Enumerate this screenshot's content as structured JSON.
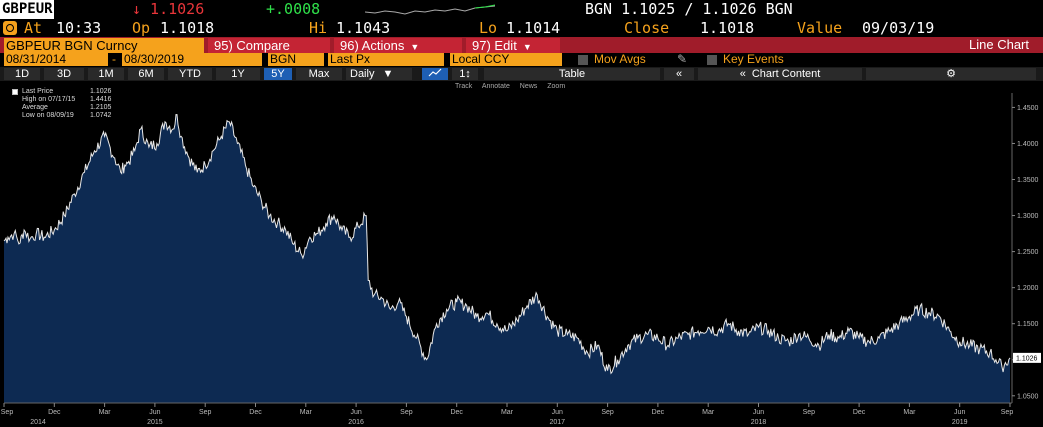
{
  "ticker": {
    "symbol": "GBPEUR",
    "last": "↓ 1.1026",
    "change": "+.0008",
    "bid_ask": "BGN 1.1025 / 1.1026 BGN"
  },
  "quote": {
    "at_label": "At",
    "time": "10:33",
    "open_label": "Op",
    "open": "1.1018",
    "high_label": "Hi",
    "high": "1.1043",
    "low_label": "Lo",
    "low": "1.1014",
    "close_label": "Close",
    "close": "1.1018",
    "value_label": "Value",
    "value_date": "09/03/19"
  },
  "menubar": {
    "security": "GBPEUR BGN Curncy",
    "compare": "95) Compare",
    "actions": "96) Actions",
    "edit": "97) Edit",
    "chart_type": "Line Chart"
  },
  "settings": {
    "start_date": "08/31/2014",
    "dash": "-",
    "end_date": "08/30/2019",
    "source": "BGN",
    "field": "Last Px",
    "currency": "Local CCY",
    "mov_avgs": "Mov Avgs",
    "key_events": "Key Events"
  },
  "periods": {
    "buttons": [
      "1D",
      "3D",
      "1M",
      "6M",
      "YTD",
      "1Y",
      "5Y",
      "Max"
    ],
    "active": "5Y",
    "frequency": "Daily",
    "table": "Table",
    "chart_content": "Chart Content"
  },
  "tools": [
    "Track",
    "Annotate",
    "News",
    "Zoom"
  ],
  "legend": [
    {
      "label": "Last Price",
      "value": "1.1026"
    },
    {
      "label": "High on 07/17/15",
      "value": "1.4416"
    },
    {
      "label": "Average",
      "value": "1.2105"
    },
    {
      "label": "Low on 08/09/19",
      "value": "1.0742"
    }
  ],
  "colors": {
    "line": "#e8e8e8",
    "fill": "#0d2a52",
    "axis_text": "#bbbbbb",
    "last_label_bg": "#ffffff"
  },
  "chart_data": {
    "type": "area",
    "title": "",
    "x_unit": "years since 08/31/2014",
    "x": [
      0,
      0.02,
      0.05,
      0.08,
      0.1,
      0.13,
      0.16,
      0.2,
      0.25,
      0.3,
      0.35,
      0.4,
      0.45,
      0.5,
      0.55,
      0.58,
      0.6,
      0.62,
      0.65,
      0.68,
      0.72,
      0.76,
      0.8,
      0.84,
      0.86,
      0.88,
      0.92,
      0.96,
      1.0,
      1.04,
      1.08,
      1.12,
      1.16,
      1.2,
      1.24,
      1.28,
      1.32,
      1.36,
      1.4,
      1.44,
      1.48,
      1.52,
      1.56,
      1.6,
      1.64,
      1.68,
      1.72,
      1.76,
      1.8,
      1.81,
      1.84,
      1.88,
      1.92,
      1.96,
      2.0,
      2.05,
      2.1,
      2.15,
      2.2,
      2.25,
      2.3,
      2.35,
      2.4,
      2.45,
      2.5,
      2.55,
      2.6,
      2.65,
      2.7,
      2.75,
      2.8,
      2.85,
      2.9,
      2.95,
      3.0,
      3.05,
      3.1,
      3.15,
      3.2,
      3.25,
      3.3,
      3.35,
      3.4,
      3.45,
      3.5,
      3.55,
      3.6,
      3.65,
      3.7,
      3.75,
      3.8,
      3.85,
      3.9,
      3.95,
      4.0,
      4.05,
      4.1,
      4.15,
      4.2,
      4.25,
      4.3,
      4.35,
      4.4,
      4.45,
      4.5,
      4.55,
      4.6,
      4.65,
      4.7,
      4.75,
      4.8,
      4.85,
      4.9,
      4.93,
      4.96,
      5.0
    ],
    "values": [
      1.265,
      1.27,
      1.275,
      1.262,
      1.28,
      1.268,
      1.275,
      1.27,
      1.28,
      1.3,
      1.33,
      1.36,
      1.39,
      1.41,
      1.38,
      1.36,
      1.37,
      1.375,
      1.39,
      1.42,
      1.395,
      1.4,
      1.43,
      1.42,
      1.44,
      1.41,
      1.38,
      1.36,
      1.37,
      1.39,
      1.41,
      1.43,
      1.4,
      1.37,
      1.34,
      1.32,
      1.3,
      1.29,
      1.28,
      1.26,
      1.245,
      1.27,
      1.275,
      1.29,
      1.3,
      1.28,
      1.27,
      1.285,
      1.3,
      1.21,
      1.19,
      1.185,
      1.17,
      1.18,
      1.16,
      1.13,
      1.1,
      1.15,
      1.17,
      1.18,
      1.175,
      1.16,
      1.165,
      1.15,
      1.14,
      1.155,
      1.175,
      1.19,
      1.16,
      1.14,
      1.135,
      1.13,
      1.11,
      1.12,
      1.085,
      1.1,
      1.12,
      1.13,
      1.135,
      1.13,
      1.12,
      1.13,
      1.135,
      1.14,
      1.145,
      1.14,
      1.15,
      1.14,
      1.135,
      1.145,
      1.14,
      1.13,
      1.125,
      1.135,
      1.13,
      1.12,
      1.135,
      1.13,
      1.14,
      1.13,
      1.125,
      1.13,
      1.14,
      1.15,
      1.16,
      1.17,
      1.165,
      1.16,
      1.14,
      1.125,
      1.12,
      1.115,
      1.11,
      1.1,
      1.09,
      1.1026
    ],
    "ylim": [
      1.04,
      1.47
    ],
    "yticks": [
      "1.0500",
      "1.1000",
      "1.1500",
      "1.2000",
      "1.2500",
      "1.3000",
      "1.3500",
      "1.4000",
      "1.4500"
    ],
    "ytick_values": [
      1.05,
      1.1,
      1.15,
      1.2,
      1.25,
      1.3,
      1.35,
      1.4,
      1.45
    ],
    "last_label": "1.1026",
    "last_value": 1.1026,
    "xticks": [
      {
        "t": 0.0,
        "m": "Sep",
        "y": "2014"
      },
      {
        "t": 0.25,
        "m": "Dec",
        "y": ""
      },
      {
        "t": 0.5,
        "m": "Mar",
        "y": ""
      },
      {
        "t": 0.75,
        "m": "Jun",
        "y": "2015"
      },
      {
        "t": 1.0,
        "m": "Sep",
        "y": ""
      },
      {
        "t": 1.25,
        "m": "Dec",
        "y": ""
      },
      {
        "t": 1.5,
        "m": "Mar",
        "y": ""
      },
      {
        "t": 1.75,
        "m": "Jun",
        "y": "2016"
      },
      {
        "t": 2.0,
        "m": "Sep",
        "y": ""
      },
      {
        "t": 2.25,
        "m": "Dec",
        "y": ""
      },
      {
        "t": 2.5,
        "m": "Mar",
        "y": ""
      },
      {
        "t": 2.75,
        "m": "Jun",
        "y": "2017"
      },
      {
        "t": 3.0,
        "m": "Sep",
        "y": ""
      },
      {
        "t": 3.25,
        "m": "Dec",
        "y": ""
      },
      {
        "t": 3.5,
        "m": "Mar",
        "y": ""
      },
      {
        "t": 3.75,
        "m": "Jun",
        "y": "2018"
      },
      {
        "t": 4.0,
        "m": "Sep",
        "y": ""
      },
      {
        "t": 4.25,
        "m": "Dec",
        "y": ""
      },
      {
        "t": 4.5,
        "m": "Mar",
        "y": ""
      },
      {
        "t": 4.75,
        "m": "Jun",
        "y": "2019"
      },
      {
        "t": 5.0,
        "m": "Sep",
        "y": ""
      }
    ],
    "grid": false
  }
}
